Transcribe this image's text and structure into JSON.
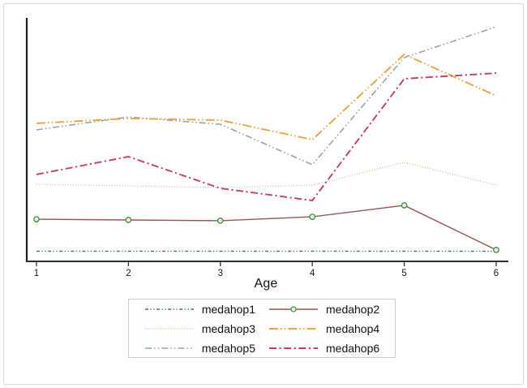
{
  "figure": {
    "background": "#ffffff",
    "border_color": "#d8d8d8",
    "axis_color": "#262626"
  },
  "chart_data": {
    "type": "line",
    "title": "",
    "xlabel": "Age",
    "ylabel": "",
    "x": [
      1,
      2,
      3,
      4,
      5,
      6
    ],
    "x_tick_labels": [
      "1",
      "2",
      "3",
      "4",
      "5",
      "6"
    ],
    "xlim": [
      1,
      6
    ],
    "ylim": [
      0,
      100
    ],
    "grid": false,
    "y_tick_labels_visible": false,
    "note": "No y-axis tick labels shown; y values estimated on a 0-100 relative scale of plot height.",
    "series": [
      {
        "name": "medahop1",
        "color": "#4a6b7e",
        "line_style": "shortdash_dot_dot",
        "marker": "none",
        "values": [
          4.2,
          4.2,
          4.2,
          4.2,
          4.2,
          4.2
        ]
      },
      {
        "name": "medahop3",
        "color": "#b7bb8a",
        "line_style": "dotted",
        "marker": "none",
        "values": [
          31.7,
          31.0,
          30.3,
          31.3,
          40.7,
          31.3
        ]
      },
      {
        "name": "medahop5",
        "color": "#94a6ac",
        "line_style": "dash_dot_dot",
        "marker": "none",
        "values": [
          54.0,
          59.3,
          56.3,
          39.7,
          83.7,
          96.3
        ]
      },
      {
        "name": "medahop4",
        "color": "#eea43e",
        "line_style": "longdash_dot_dot",
        "marker": "none",
        "values": [
          56.7,
          58.7,
          58.0,
          50.0,
          85.0,
          68.0
        ]
      },
      {
        "name": "medahop6",
        "color": "#c93a6b",
        "line_style": "dash_dot",
        "marker": "none",
        "values": [
          35.7,
          43.0,
          30.0,
          25.0,
          75.0,
          77.3
        ]
      },
      {
        "name": "medahop2",
        "color": "#9a5454",
        "line_style": "solid",
        "marker": "circle",
        "marker_stroke": "#3f8f3f",
        "marker_fill": "#e9f1e5",
        "values": [
          17.3,
          17.0,
          16.7,
          18.3,
          23.0,
          4.7
        ]
      }
    ],
    "legend": {
      "position": "bottom",
      "columns": 2,
      "order": [
        "medahop1",
        "medahop2",
        "medahop3",
        "medahop4",
        "medahop5",
        "medahop6"
      ]
    }
  }
}
